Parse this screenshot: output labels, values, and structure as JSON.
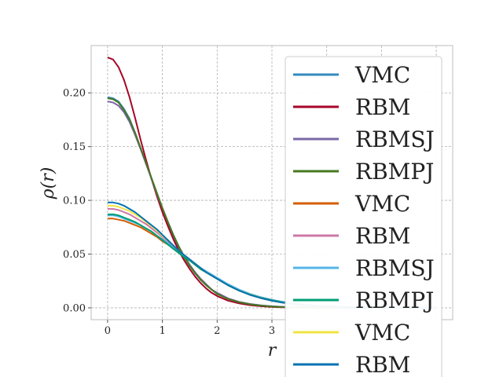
{
  "chart_data": {
    "type": "line",
    "title": "",
    "xlabel": "r",
    "ylabel": "ρ(r)",
    "xlim": [
      -0.3,
      6.3
    ],
    "ylim": [
      -0.011,
      0.244
    ],
    "xticks": [
      0,
      1,
      2,
      3
    ],
    "xtick_labels": [
      "0",
      "1",
      "2",
      "3"
    ],
    "yticks": [
      0.0,
      0.05,
      0.1,
      0.15,
      0.2
    ],
    "ytick_labels": [
      "0.00",
      "0.05",
      "0.10",
      "0.15",
      "0.20"
    ],
    "grid": true,
    "legend_position": "right",
    "x": [
      0,
      0.1,
      0.2,
      0.3,
      0.4,
      0.5,
      0.6,
      0.7,
      0.8,
      0.9,
      1.0,
      1.1,
      1.2,
      1.3,
      1.4,
      1.5,
      1.6,
      1.7,
      1.8,
      1.9,
      2.0,
      2.2,
      2.4,
      2.6,
      2.8,
      3.0,
      3.2,
      3.4,
      3.6,
      3.8,
      4.0,
      4.5,
      5.0,
      5.5,
      6.0
    ],
    "series": [
      {
        "name": "VMC",
        "color": "#348abd",
        "values": [
          0.196,
          0.195,
          0.192,
          0.185,
          0.176,
          0.163,
          0.149,
          0.135,
          0.12,
          0.106,
          0.092,
          0.079,
          0.067,
          0.056,
          0.047,
          0.039,
          0.032,
          0.026,
          0.021,
          0.017,
          0.013,
          0.0085,
          0.0055,
          0.0035,
          0.0022,
          0.0014,
          0.0009,
          0.0006,
          0.0004,
          0.0002,
          0.0001,
          0.0,
          0.0,
          0.0,
          0.0
        ]
      },
      {
        "name": "RBM",
        "color": "#a60628",
        "values": [
          0.233,
          0.231,
          0.224,
          0.212,
          0.196,
          0.177,
          0.157,
          0.138,
          0.12,
          0.104,
          0.089,
          0.076,
          0.064,
          0.053,
          0.044,
          0.036,
          0.029,
          0.023,
          0.018,
          0.014,
          0.011,
          0.0067,
          0.0041,
          0.0025,
          0.0015,
          0.0009,
          0.0005,
          0.0003,
          0.0002,
          0.0001,
          0.0,
          0.0,
          0.0,
          0.0,
          0.0
        ]
      },
      {
        "name": "RBMSJ",
        "color": "#7a68a6",
        "values": [
          0.192,
          0.191,
          0.188,
          0.182,
          0.173,
          0.161,
          0.148,
          0.134,
          0.12,
          0.106,
          0.093,
          0.08,
          0.068,
          0.057,
          0.048,
          0.04,
          0.033,
          0.027,
          0.022,
          0.017,
          0.014,
          0.0088,
          0.0056,
          0.0036,
          0.0023,
          0.0014,
          0.0009,
          0.0006,
          0.0004,
          0.0002,
          0.0001,
          0.0,
          0.0,
          0.0,
          0.0
        ]
      },
      {
        "name": "RBMPJ",
        "color": "#467821",
        "values": [
          0.195,
          0.194,
          0.191,
          0.184,
          0.175,
          0.163,
          0.149,
          0.135,
          0.121,
          0.107,
          0.093,
          0.08,
          0.068,
          0.057,
          0.047,
          0.039,
          0.032,
          0.026,
          0.021,
          0.017,
          0.013,
          0.0083,
          0.0052,
          0.0033,
          0.0021,
          0.0013,
          0.0008,
          0.0005,
          0.0003,
          0.0002,
          0.0001,
          0.0,
          0.0,
          0.0,
          0.0
        ]
      },
      {
        "name": "VMC",
        "color": "#d55e00",
        "values": [
          0.083,
          0.083,
          0.082,
          0.081,
          0.079,
          0.077,
          0.075,
          0.072,
          0.069,
          0.066,
          0.062,
          0.059,
          0.055,
          0.051,
          0.047,
          0.044,
          0.04,
          0.036,
          0.033,
          0.03,
          0.027,
          0.021,
          0.016,
          0.0125,
          0.0095,
          0.007,
          0.0052,
          0.0038,
          0.0027,
          0.0019,
          0.0013,
          0.0005,
          0.0002,
          0.0001,
          0.0
        ]
      },
      {
        "name": "RBM",
        "color": "#cc79a7",
        "values": [
          0.092,
          0.092,
          0.091,
          0.089,
          0.087,
          0.084,
          0.081,
          0.078,
          0.074,
          0.07,
          0.066,
          0.062,
          0.057,
          0.053,
          0.049,
          0.045,
          0.041,
          0.037,
          0.033,
          0.03,
          0.027,
          0.021,
          0.016,
          0.012,
          0.009,
          0.0066,
          0.0048,
          0.0034,
          0.0024,
          0.0017,
          0.0012,
          0.0004,
          0.0001,
          0.0,
          0.0
        ]
      },
      {
        "name": "RBMSJ",
        "color": "#56b4e9",
        "values": [
          0.086,
          0.086,
          0.085,
          0.083,
          0.081,
          0.079,
          0.077,
          0.074,
          0.071,
          0.067,
          0.064,
          0.06,
          0.056,
          0.052,
          0.048,
          0.045,
          0.041,
          0.037,
          0.034,
          0.031,
          0.028,
          0.022,
          0.017,
          0.013,
          0.0099,
          0.0075,
          0.0056,
          0.0041,
          0.003,
          0.0021,
          0.0015,
          0.0006,
          0.0002,
          0.0001,
          0.0
        ]
      },
      {
        "name": "RBMPJ",
        "color": "#009e73",
        "values": [
          0.087,
          0.087,
          0.086,
          0.084,
          0.082,
          0.08,
          0.077,
          0.074,
          0.071,
          0.067,
          0.063,
          0.059,
          0.055,
          0.051,
          0.047,
          0.044,
          0.04,
          0.036,
          0.033,
          0.03,
          0.027,
          0.021,
          0.016,
          0.0125,
          0.0094,
          0.0071,
          0.0053,
          0.0039,
          0.0028,
          0.002,
          0.0014,
          0.0005,
          0.0002,
          0.0001,
          0.0
        ]
      },
      {
        "name": "VMC",
        "color": "#f0e442",
        "values": [
          0.095,
          0.095,
          0.094,
          0.092,
          0.09,
          0.087,
          0.084,
          0.08,
          0.076,
          0.072,
          0.067,
          0.063,
          0.058,
          0.053,
          0.049,
          0.045,
          0.041,
          0.037,
          0.033,
          0.03,
          0.027,
          0.021,
          0.016,
          0.0122,
          0.0091,
          0.0067,
          0.0049,
          0.0035,
          0.0025,
          0.0018,
          0.0012,
          0.0004,
          0.0001,
          0.0,
          0.0
        ]
      },
      {
        "name": "RBM",
        "color": "#0072b2",
        "values": [
          0.098,
          0.098,
          0.097,
          0.095,
          0.092,
          0.089,
          0.085,
          0.081,
          0.077,
          0.073,
          0.068,
          0.063,
          0.058,
          0.053,
          0.049,
          0.045,
          0.041,
          0.037,
          0.033,
          0.03,
          0.027,
          0.021,
          0.016,
          0.0121,
          0.009,
          0.0066,
          0.0048,
          0.0034,
          0.0024,
          0.0017,
          0.0012,
          0.0004,
          0.0001,
          0.0,
          0.0
        ]
      }
    ]
  }
}
